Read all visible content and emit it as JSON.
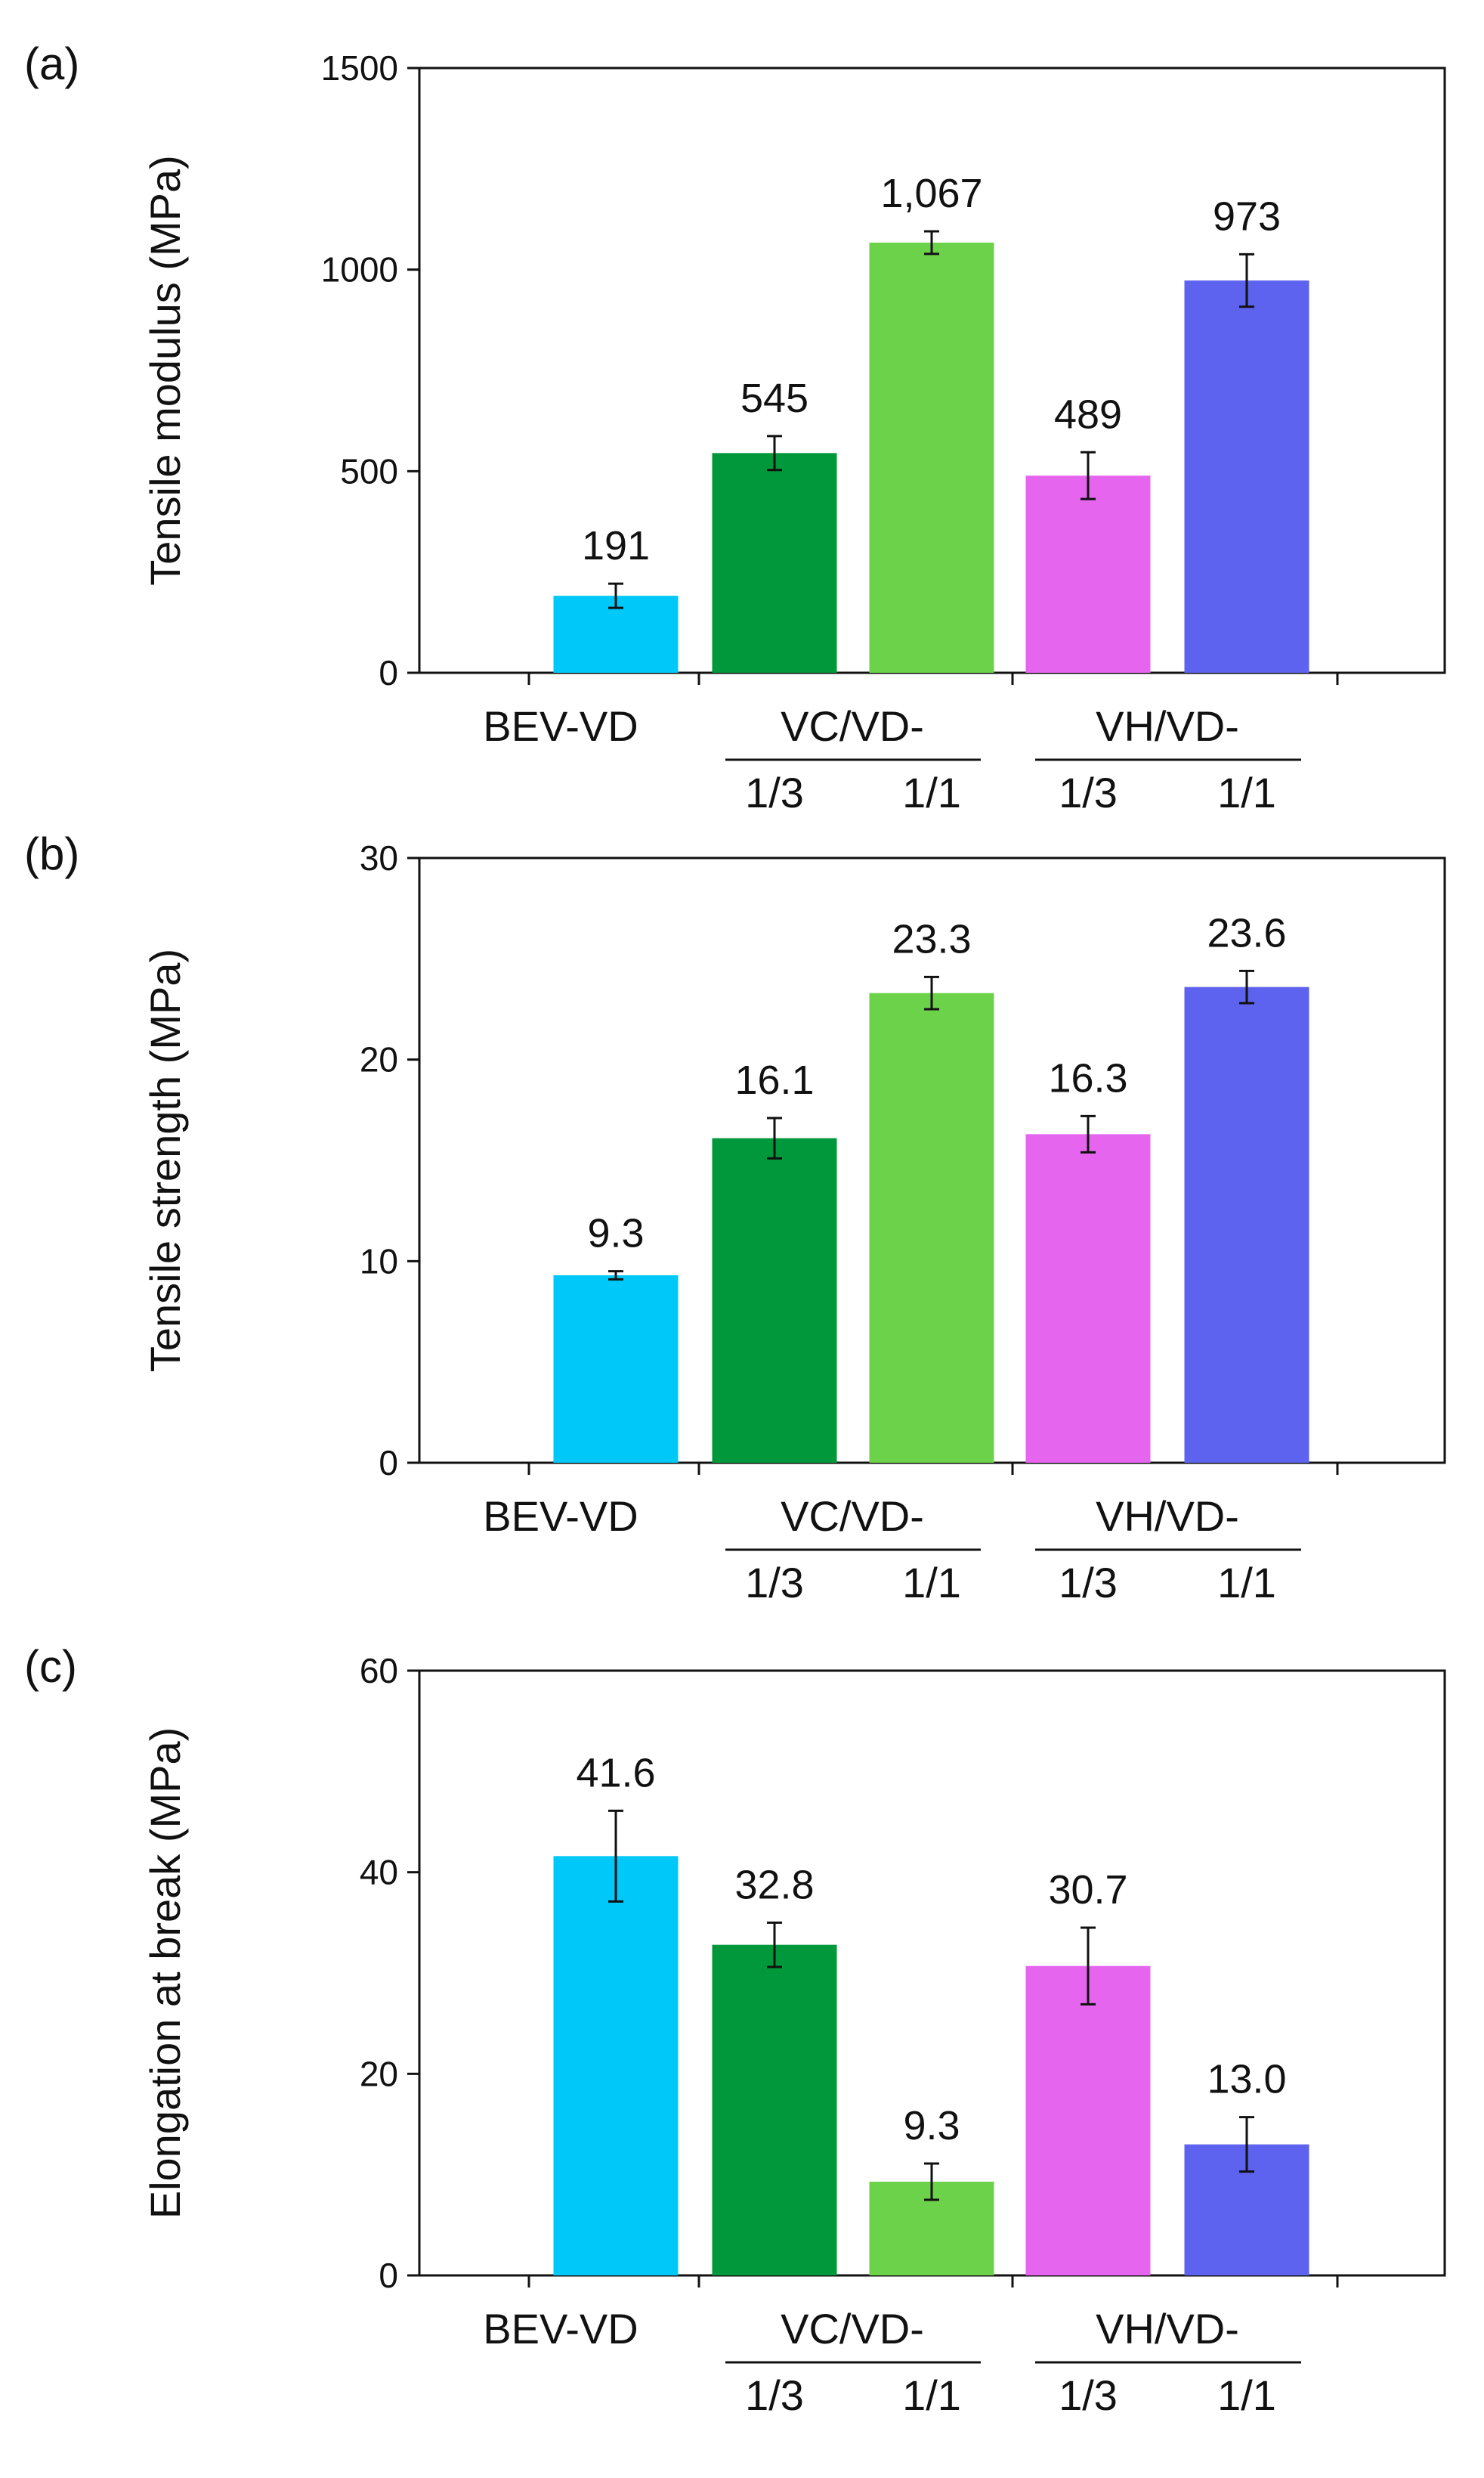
{
  "chart_data": [
    {
      "type": "bar",
      "panel_label": "(a)",
      "ylabel": "Tensile modulus (MPa)",
      "ylim": [
        0,
        1500
      ],
      "yticks": [
        "0",
        "500",
        "1000",
        "1500"
      ],
      "grid": false,
      "legend": "none",
      "categories": [
        "BEV-VD",
        "VC/VD-1/3",
        "VC/VD-1/1",
        "VH/VD-1/3",
        "VH/VD-1/1"
      ],
      "values": [
        191,
        545,
        1067,
        489,
        973
      ],
      "value_labels": [
        "191",
        "545",
        "1,067",
        "489",
        "973"
      ],
      "errors": [
        30,
        42,
        28,
        58,
        65
      ],
      "colors": [
        "#00c8f8",
        "#00983a",
        "#6cd24a",
        "#e665ef",
        "#5d63ee"
      ],
      "axis_labels": {
        "single": "BEV-VD",
        "group1": "VC/VD-",
        "group2": "VH/VD-",
        "sub1": "1/3",
        "sub2": "1/1",
        "sub3": "1/3",
        "sub4": "1/1"
      }
    },
    {
      "type": "bar",
      "panel_label": "(b)",
      "ylabel": "Tensile strength (MPa)",
      "ylim": [
        0,
        30
      ],
      "yticks": [
        "0",
        "10",
        "20",
        "30"
      ],
      "grid": false,
      "legend": "none",
      "categories": [
        "BEV-VD",
        "VC/VD-1/3",
        "VC/VD-1/1",
        "VH/VD-1/3",
        "VH/VD-1/1"
      ],
      "values": [
        9.3,
        16.1,
        23.3,
        16.3,
        23.6
      ],
      "value_labels": [
        "9.3",
        "16.1",
        "23.3",
        "16.3",
        "23.6"
      ],
      "errors": [
        0.2,
        1.0,
        0.8,
        0.9,
        0.8
      ],
      "colors": [
        "#00c8f8",
        "#00983a",
        "#6cd24a",
        "#e665ef",
        "#5d63ee"
      ],
      "axis_labels": {
        "single": "BEV-VD",
        "group1": "VC/VD-",
        "group2": "VH/VD-",
        "sub1": "1/3",
        "sub2": "1/1",
        "sub3": "1/3",
        "sub4": "1/1"
      }
    },
    {
      "type": "bar",
      "panel_label": "(c)",
      "ylabel": "Elongation at break (MPa)",
      "ylim": [
        0,
        60
      ],
      "yticks": [
        "0",
        "20",
        "40",
        "60"
      ],
      "grid": false,
      "legend": "none",
      "categories": [
        "BEV-VD",
        "VC/VD-1/3",
        "VC/VD-1/1",
        "VH/VD-1/3",
        "VH/VD-1/1"
      ],
      "values": [
        41.6,
        32.8,
        9.3,
        30.7,
        13.0
      ],
      "value_labels": [
        "41.6",
        "32.8",
        "9.3",
        "30.7",
        "13.0"
      ],
      "errors": [
        4.5,
        2.2,
        1.8,
        3.8,
        2.7
      ],
      "colors": [
        "#00c8f8",
        "#00983a",
        "#6cd24a",
        "#e665ef",
        "#5d63ee"
      ],
      "axis_labels": {
        "single": "BEV-VD",
        "group1": "VC/VD-",
        "group2": "VH/VD-",
        "sub1": "1/3",
        "sub2": "1/1",
        "sub3": "1/3",
        "sub4": "1/1"
      }
    }
  ]
}
